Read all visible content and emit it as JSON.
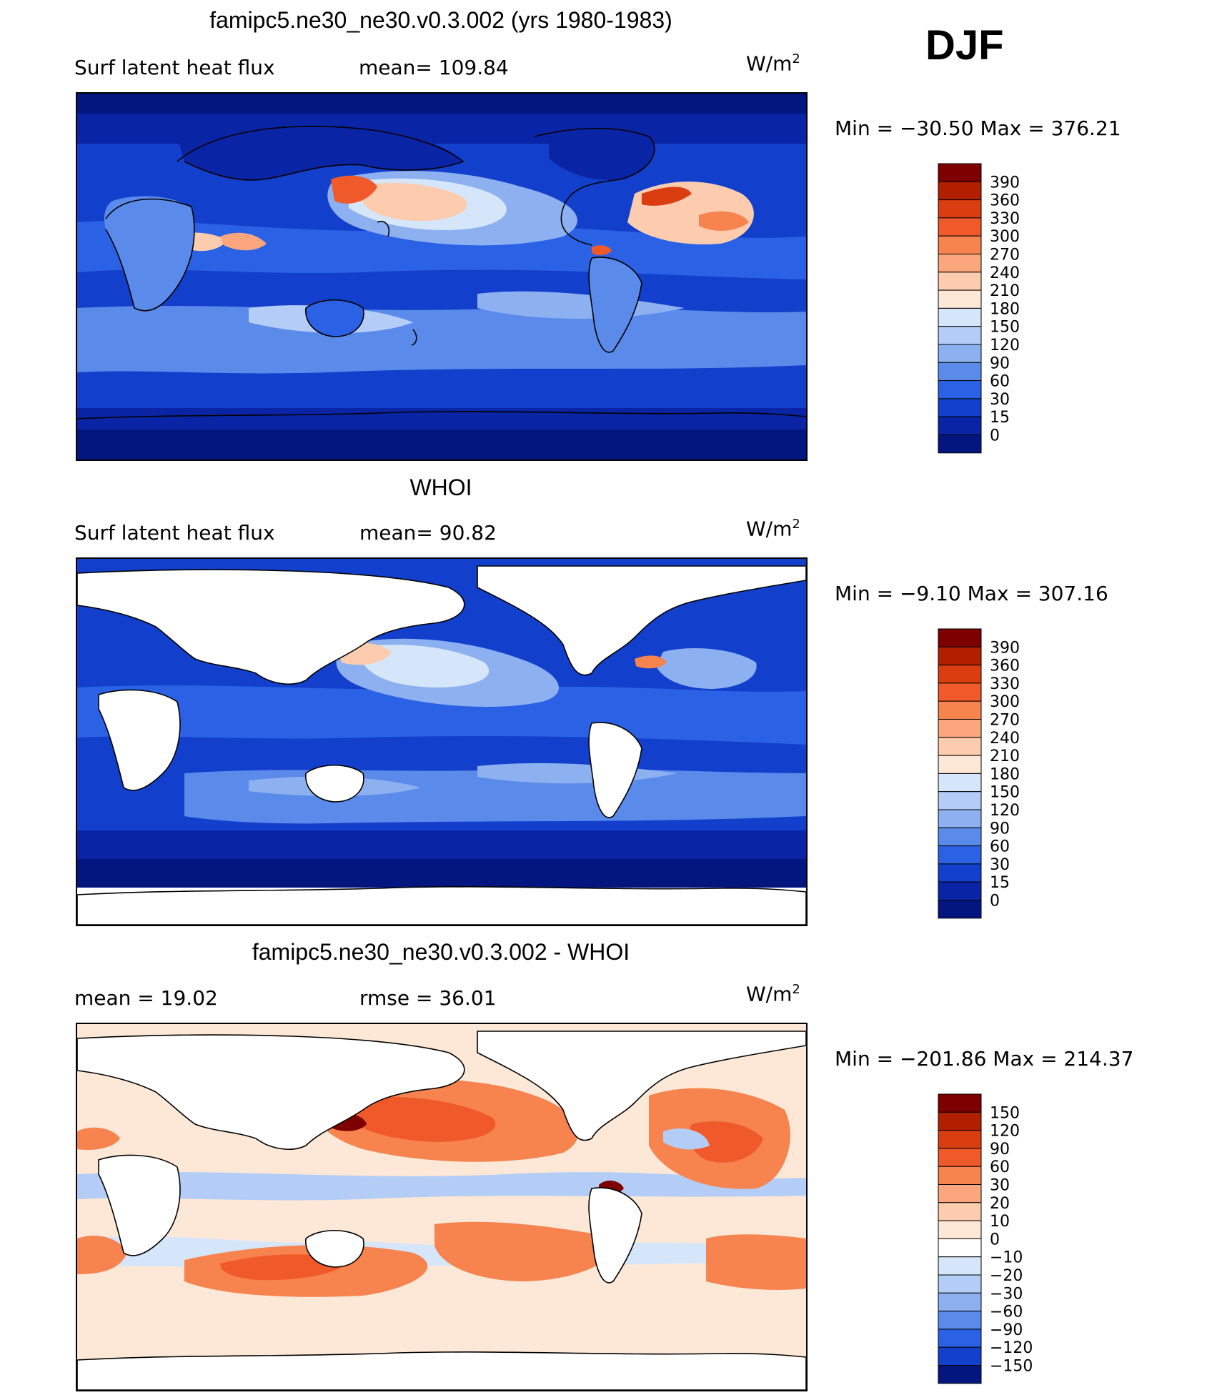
{
  "season_label": "DJF",
  "panels": [
    {
      "title": "famipc5.ne30_ne30.v0.3.002 (yrs 1980-1983)",
      "left_text": "Surf  latent  heat  flux",
      "mid_text": "mean=  109.84",
      "units_base": "W/m",
      "units_exp": "2",
      "minmax_text": "Min  =  −30.50  Max  =  376.21",
      "land_masked": false,
      "colorbar": {
        "labels": [
          "390",
          "360",
          "330",
          "300",
          "270",
          "240",
          "210",
          "180",
          "150",
          "120",
          "90",
          "60",
          "30",
          "15",
          "0"
        ],
        "colors": [
          "#7f0000",
          "#b21f00",
          "#d93d10",
          "#f05a2a",
          "#f7834f",
          "#fca67e",
          "#fdcbae",
          "#fde8d7",
          "#d6e6fa",
          "#b3cdf6",
          "#8cb0f0",
          "#5a8aea",
          "#2b62e5",
          "#1240cc",
          "#0a24a6",
          "#03157e"
        ]
      }
    },
    {
      "title": "WHOI",
      "left_text": "Surf  latent  heat  flux",
      "mid_text": "mean=   90.82",
      "units_base": "W/m",
      "units_exp": "2",
      "minmax_text": "Min  =   −9.10  Max  =  307.16",
      "land_masked": true,
      "colorbar": {
        "labels": [
          "390",
          "360",
          "330",
          "300",
          "270",
          "240",
          "210",
          "180",
          "150",
          "120",
          "90",
          "60",
          "30",
          "15",
          "0"
        ],
        "colors": [
          "#7f0000",
          "#b21f00",
          "#d93d10",
          "#f05a2a",
          "#f7834f",
          "#fca67e",
          "#fdcbae",
          "#fde8d7",
          "#d6e6fa",
          "#b3cdf6",
          "#8cb0f0",
          "#5a8aea",
          "#2b62e5",
          "#1240cc",
          "#0a24a6",
          "#03157e"
        ]
      }
    },
    {
      "title": "famipc5.ne30_ne30.v0.3.002 - WHOI",
      "left_text": "mean  =    19.02",
      "mid_text": "rmse  =    36.01",
      "units_base": "W/m",
      "units_exp": "2",
      "minmax_text": "Min  =  −201.86  Max  =  214.37",
      "land_masked": true,
      "colorbar": {
        "labels": [
          "150",
          "120",
          "90",
          "60",
          "30",
          "20",
          "10",
          "0",
          "−10",
          "−20",
          "−30",
          "−60",
          "−90",
          "−120",
          "−150"
        ],
        "colors": [
          "#7f0000",
          "#b21f00",
          "#d93d10",
          "#f05a2a",
          "#f7834f",
          "#fca67e",
          "#fdcbae",
          "#fde8d7",
          "#ffffff",
          "#d6e6fa",
          "#b3cdf6",
          "#8cb0f0",
          "#5a8aea",
          "#2b62e5",
          "#1240cc",
          "#03157e"
        ]
      }
    }
  ]
}
